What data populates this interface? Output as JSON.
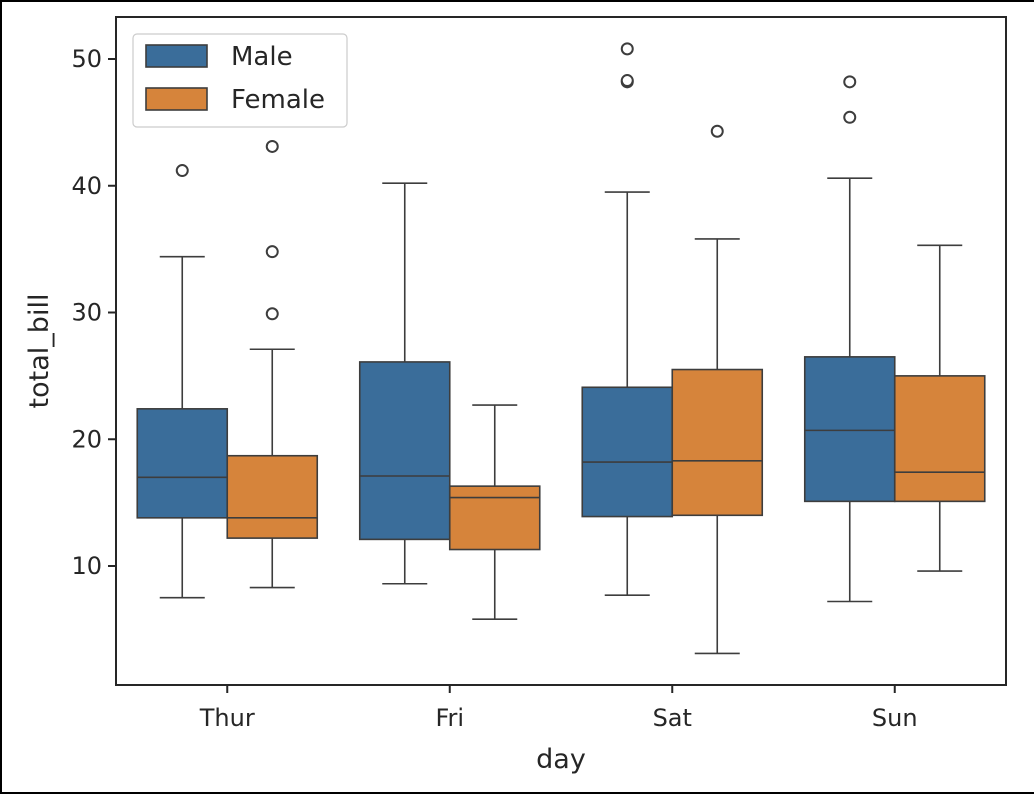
{
  "chart_data": {
    "type": "box",
    "xlabel": "day",
    "ylabel": "total_bill",
    "ylim": [
      0.3,
      53.4
    ],
    "yticks": [
      10,
      20,
      30,
      40,
      50
    ],
    "categories": [
      "Thur",
      "Fri",
      "Sat",
      "Sun"
    ],
    "legend": {
      "placement": "top-left",
      "entries": [
        "Male",
        "Female"
      ]
    },
    "series": [
      {
        "name": "Male",
        "color": "#3a6d9a",
        "boxes": [
          {
            "whislo": 7.5,
            "q1": 13.8,
            "med": 17.0,
            "q3": 22.4,
            "whishi": 34.4,
            "fliers": [
              41.2
            ]
          },
          {
            "whislo": 8.6,
            "q1": 12.1,
            "med": 17.1,
            "q3": 26.1,
            "whishi": 40.2,
            "fliers": []
          },
          {
            "whislo": 7.7,
            "q1": 13.9,
            "med": 18.2,
            "q3": 24.1,
            "whishi": 39.5,
            "fliers": [
              48.2,
              48.3,
              50.8
            ]
          },
          {
            "whislo": 7.2,
            "q1": 15.1,
            "med": 20.7,
            "q3": 26.5,
            "whishi": 40.6,
            "fliers": [
              45.4,
              48.2
            ]
          }
        ]
      },
      {
        "name": "Female",
        "color": "#d6843b",
        "boxes": [
          {
            "whislo": 8.3,
            "q1": 12.2,
            "med": 13.8,
            "q3": 18.7,
            "whishi": 27.1,
            "fliers": [
              29.9,
              34.8,
              43.1
            ]
          },
          {
            "whislo": 5.8,
            "q1": 11.3,
            "med": 15.4,
            "q3": 16.3,
            "whishi": 22.7,
            "fliers": []
          },
          {
            "whislo": 3.1,
            "q1": 14.0,
            "med": 18.3,
            "q3": 25.5,
            "whishi": 35.8,
            "fliers": [
              44.3
            ]
          },
          {
            "whislo": 9.6,
            "q1": 15.1,
            "med": 17.4,
            "q3": 25.0,
            "whishi": 35.3,
            "fliers": []
          }
        ]
      }
    ]
  }
}
